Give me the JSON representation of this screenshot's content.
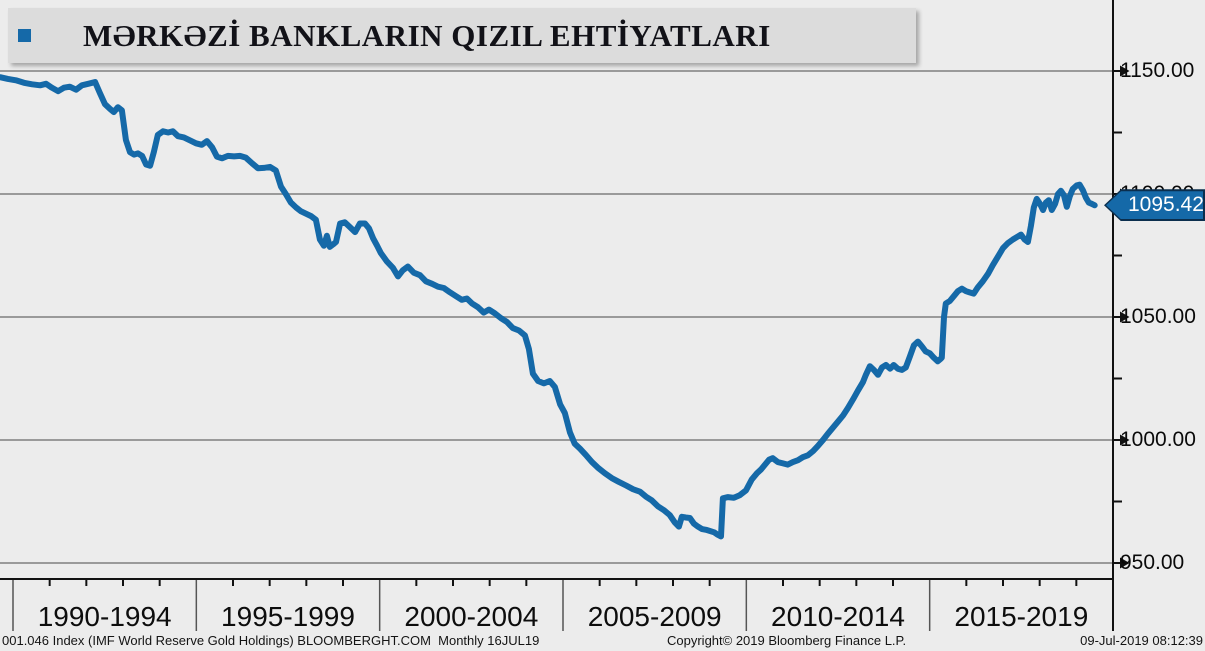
{
  "title": {
    "text": "MƏRKƏZİ BANKLARIN QIZIL EHTİYATLARI",
    "bullet_icon": "square-bullet"
  },
  "colors": {
    "accent_blue": "#1569A8",
    "badge_border": "#0b2e4d",
    "background": "#ECECEC",
    "title_panel": "#DCDCDC",
    "gridline": "#9A9A9A",
    "axis": "#111111",
    "separator": "#555555",
    "text": "#141414",
    "badge_text": "#FFFFFF"
  },
  "y_axis": {
    "side": "right",
    "major_ticks": [
      {
        "label": "1150.00",
        "value": 1150
      },
      {
        "label": "1100.00",
        "value": 1100
      },
      {
        "label": "1050.00",
        "value": 1050
      },
      {
        "label": "1000.00",
        "value": 1000
      },
      {
        "label": "950.00",
        "value": 950
      }
    ],
    "minor_tick_values": [
      1125,
      1075,
      1025,
      975
    ]
  },
  "x_axis": {
    "period_labels": [
      "1990-1994",
      "1995-1999",
      "2000-2004",
      "2005-2009",
      "2010-2014",
      "2015-2019"
    ],
    "minor_tick_unit": "year",
    "start_year": 1990,
    "end_year": 2020
  },
  "current_value_badge": {
    "label": "1095.42",
    "value": 1095.42
  },
  "footer": {
    "left": "001.046 Index (IMF World Reserve Gold Holdings) BLOOMBERGHT.COM  Monthly 16JUL19",
    "center": "Copyright© 2019 Bloomberg Finance L.P.",
    "right": "09-Jul-2019 08:12:39"
  },
  "chart_data": {
    "type": "line",
    "title": "MƏRKƏZİ BANKLARIN QIZIL EHTİYATLARI",
    "xlabel": "year",
    "ylabel": "001.046 Index (IMF World Reserve Gold Holdings)",
    "frequency": "Monthly",
    "as_of": "16JUL19",
    "last_value": 1095.42,
    "xlim": [
      1989.6,
      2019.6
    ],
    "ylim": [
      941,
      1179
    ],
    "y_gridlines": [
      950,
      1000,
      1050,
      1100,
      1150
    ],
    "grid": "horizontal",
    "legend": "none",
    "series": [
      {
        "name": "IMF World Reserve Gold Holdings (001.046 Index)",
        "color": "#1569A8",
        "points": [
          [
            1989.65,
            1147.5
          ],
          [
            1989.86,
            1146.8
          ],
          [
            1990.08,
            1146.2
          ],
          [
            1990.3,
            1145.2
          ],
          [
            1990.52,
            1144.6
          ],
          [
            1990.74,
            1144.2
          ],
          [
            1990.9,
            1144.8
          ],
          [
            1991.06,
            1143.2
          ],
          [
            1991.23,
            1141.8
          ],
          [
            1991.39,
            1143.2
          ],
          [
            1991.55,
            1143.6
          ],
          [
            1991.72,
            1142.4
          ],
          [
            1991.88,
            1144.2
          ],
          [
            1992.05,
            1144.8
          ],
          [
            1992.24,
            1145.5
          ],
          [
            1992.37,
            1141.0
          ],
          [
            1992.51,
            1136.5
          ],
          [
            1992.65,
            1134.5
          ],
          [
            1992.75,
            1133.3
          ],
          [
            1992.86,
            1135.3
          ],
          [
            1992.97,
            1134.0
          ],
          [
            1993.08,
            1122.0
          ],
          [
            1993.19,
            1117.0
          ],
          [
            1993.3,
            1116.0
          ],
          [
            1993.41,
            1116.5
          ],
          [
            1993.52,
            1115.5
          ],
          [
            1993.63,
            1112.0
          ],
          [
            1993.74,
            1111.5
          ],
          [
            1993.84,
            1117.0
          ],
          [
            1993.95,
            1124.0
          ],
          [
            1994.09,
            1125.5
          ],
          [
            1994.23,
            1125.0
          ],
          [
            1994.36,
            1125.5
          ],
          [
            1994.5,
            1123.5
          ],
          [
            1994.66,
            1123.0
          ],
          [
            1994.83,
            1121.8
          ],
          [
            1994.99,
            1120.6
          ],
          [
            1995.15,
            1120.0
          ],
          [
            1995.29,
            1121.5
          ],
          [
            1995.43,
            1119.0
          ],
          [
            1995.56,
            1115.2
          ],
          [
            1995.7,
            1114.5
          ],
          [
            1995.86,
            1115.5
          ],
          [
            1996.03,
            1115.3
          ],
          [
            1996.19,
            1115.5
          ],
          [
            1996.35,
            1114.8
          ],
          [
            1996.52,
            1112.5
          ],
          [
            1996.68,
            1110.5
          ],
          [
            1996.84,
            1110.6
          ],
          [
            1997.01,
            1111.0
          ],
          [
            1997.17,
            1109.5
          ],
          [
            1997.31,
            1103.0
          ],
          [
            1997.44,
            1100.0
          ],
          [
            1997.58,
            1096.5
          ],
          [
            1997.72,
            1094.5
          ],
          [
            1997.85,
            1093.0
          ],
          [
            1997.99,
            1092.0
          ],
          [
            1998.13,
            1091.0
          ],
          [
            1998.26,
            1089.5
          ],
          [
            1998.37,
            1081.5
          ],
          [
            1998.48,
            1079.0
          ],
          [
            1998.56,
            1083.0
          ],
          [
            1998.64,
            1078.5
          ],
          [
            1998.73,
            1079.5
          ],
          [
            1998.81,
            1080.5
          ],
          [
            1998.92,
            1088.0
          ],
          [
            1999.05,
            1088.5
          ],
          [
            1999.19,
            1086.5
          ],
          [
            1999.33,
            1084.5
          ],
          [
            1999.46,
            1088.0
          ],
          [
            1999.6,
            1088.0
          ],
          [
            1999.71,
            1086.0
          ],
          [
            1999.82,
            1082.0
          ],
          [
            1999.93,
            1079.0
          ],
          [
            2000.03,
            1076.0
          ],
          [
            2000.2,
            1072.5
          ],
          [
            2000.36,
            1070.0
          ],
          [
            2000.5,
            1066.5
          ],
          [
            2000.63,
            1069.0
          ],
          [
            2000.77,
            1070.5
          ],
          [
            2000.93,
            1068.0
          ],
          [
            2001.1,
            1067.0
          ],
          [
            2001.26,
            1064.5
          ],
          [
            2001.43,
            1063.5
          ],
          [
            2001.59,
            1062.3
          ],
          [
            2001.75,
            1061.8
          ],
          [
            2001.92,
            1060.0
          ],
          [
            2002.08,
            1058.5
          ],
          [
            2002.24,
            1057.0
          ],
          [
            2002.38,
            1057.5
          ],
          [
            2002.52,
            1055.5
          ],
          [
            2002.68,
            1054.0
          ],
          [
            2002.84,
            1051.8
          ],
          [
            2002.98,
            1053.0
          ],
          [
            2003.14,
            1051.5
          ],
          [
            2003.31,
            1049.5
          ],
          [
            2003.47,
            1048.0
          ],
          [
            2003.63,
            1045.5
          ],
          [
            2003.8,
            1044.5
          ],
          [
            2003.96,
            1042.5
          ],
          [
            2004.07,
            1037.0
          ],
          [
            2004.18,
            1027.0
          ],
          [
            2004.32,
            1024.0
          ],
          [
            2004.48,
            1023.0
          ],
          [
            2004.64,
            1024.0
          ],
          [
            2004.78,
            1021.5
          ],
          [
            2004.92,
            1014.5
          ],
          [
            2005.05,
            1011.0
          ],
          [
            2005.19,
            1003.0
          ],
          [
            2005.32,
            998.5
          ],
          [
            2005.46,
            996.5
          ],
          [
            2005.62,
            994.0
          ],
          [
            2005.79,
            991.0
          ],
          [
            2005.95,
            988.8
          ],
          [
            2006.14,
            986.5
          ],
          [
            2006.33,
            984.5
          ],
          [
            2006.52,
            983.0
          ],
          [
            2006.72,
            981.5
          ],
          [
            2006.91,
            980.0
          ],
          [
            2007.1,
            979.0
          ],
          [
            2007.26,
            977.0
          ],
          [
            2007.42,
            975.5
          ],
          [
            2007.59,
            973.0
          ],
          [
            2007.75,
            971.5
          ],
          [
            2007.91,
            969.5
          ],
          [
            2008.05,
            966.5
          ],
          [
            2008.16,
            964.8
          ],
          [
            2008.24,
            968.8
          ],
          [
            2008.35,
            968.5
          ],
          [
            2008.46,
            968.3
          ],
          [
            2008.57,
            966.0
          ],
          [
            2008.68,
            964.8
          ],
          [
            2008.79,
            963.8
          ],
          [
            2008.9,
            963.5
          ],
          [
            2009.01,
            963.0
          ],
          [
            2009.12,
            962.5
          ],
          [
            2009.22,
            961.5
          ],
          [
            2009.31,
            960.8
          ],
          [
            2009.36,
            976.3
          ],
          [
            2009.5,
            976.8
          ],
          [
            2009.66,
            976.5
          ],
          [
            2009.82,
            977.5
          ],
          [
            2009.99,
            979.5
          ],
          [
            2010.15,
            984.0
          ],
          [
            2010.29,
            986.5
          ],
          [
            2010.4,
            988.0
          ],
          [
            2010.51,
            990.0
          ],
          [
            2010.62,
            992.0
          ],
          [
            2010.72,
            992.6
          ],
          [
            2010.86,
            991.0
          ],
          [
            2011.0,
            990.5
          ],
          [
            2011.13,
            990.0
          ],
          [
            2011.27,
            991.0
          ],
          [
            2011.41,
            991.8
          ],
          [
            2011.54,
            993.0
          ],
          [
            2011.68,
            993.8
          ],
          [
            2011.82,
            995.5
          ],
          [
            2011.95,
            997.5
          ],
          [
            2012.09,
            1000.0
          ],
          [
            2012.22,
            1002.5
          ],
          [
            2012.36,
            1005.0
          ],
          [
            2012.5,
            1007.5
          ],
          [
            2012.64,
            1010.0
          ],
          [
            2012.77,
            1013.0
          ],
          [
            2012.91,
            1016.5
          ],
          [
            2013.04,
            1020.0
          ],
          [
            2013.18,
            1023.5
          ],
          [
            2013.26,
            1026.5
          ],
          [
            2013.37,
            1030.0
          ],
          [
            2013.48,
            1028.5
          ],
          [
            2013.59,
            1026.5
          ],
          [
            2013.7,
            1029.5
          ],
          [
            2013.81,
            1030.5
          ],
          [
            2013.92,
            1029.0
          ],
          [
            2014.02,
            1030.5
          ],
          [
            2014.13,
            1029.0
          ],
          [
            2014.24,
            1028.5
          ],
          [
            2014.35,
            1029.5
          ],
          [
            2014.46,
            1034.0
          ],
          [
            2014.57,
            1038.5
          ],
          [
            2014.68,
            1040.0
          ],
          [
            2014.79,
            1038.0
          ],
          [
            2014.89,
            1036.0
          ],
          [
            2015.0,
            1035.3
          ],
          [
            2015.11,
            1033.5
          ],
          [
            2015.22,
            1032.0
          ],
          [
            2015.3,
            1033.0
          ],
          [
            2015.33,
            1033.5
          ],
          [
            2015.39,
            1050.0
          ],
          [
            2015.44,
            1055.5
          ],
          [
            2015.55,
            1056.5
          ],
          [
            2015.66,
            1058.5
          ],
          [
            2015.77,
            1060.5
          ],
          [
            2015.88,
            1061.5
          ],
          [
            2015.99,
            1060.5
          ],
          [
            2016.09,
            1060.0
          ],
          [
            2016.2,
            1059.5
          ],
          [
            2016.31,
            1062.0
          ],
          [
            2016.45,
            1064.5
          ],
          [
            2016.59,
            1067.5
          ],
          [
            2016.72,
            1071.0
          ],
          [
            2016.86,
            1074.5
          ],
          [
            2017.0,
            1078.0
          ],
          [
            2017.13,
            1080.0
          ],
          [
            2017.27,
            1081.5
          ],
          [
            2017.38,
            1082.5
          ],
          [
            2017.49,
            1083.5
          ],
          [
            2017.59,
            1081.5
          ],
          [
            2017.68,
            1080.5
          ],
          [
            2017.76,
            1087.0
          ],
          [
            2017.84,
            1094.5
          ],
          [
            2017.92,
            1098.0
          ],
          [
            2018.01,
            1096.0
          ],
          [
            2018.09,
            1093.5
          ],
          [
            2018.17,
            1096.5
          ],
          [
            2018.25,
            1097.5
          ],
          [
            2018.33,
            1093.5
          ],
          [
            2018.42,
            1096.0
          ],
          [
            2018.5,
            1100.0
          ],
          [
            2018.58,
            1101.3
          ],
          [
            2018.66,
            1099.5
          ],
          [
            2018.74,
            1094.8
          ],
          [
            2018.82,
            1099.0
          ],
          [
            2018.9,
            1102.0
          ],
          [
            2019.01,
            1103.5
          ],
          [
            2019.09,
            1103.8
          ],
          [
            2019.18,
            1101.5
          ],
          [
            2019.26,
            1098.5
          ],
          [
            2019.34,
            1096.5
          ],
          [
            2019.42,
            1096.0
          ],
          [
            2019.5,
            1095.42
          ]
        ]
      }
    ]
  }
}
